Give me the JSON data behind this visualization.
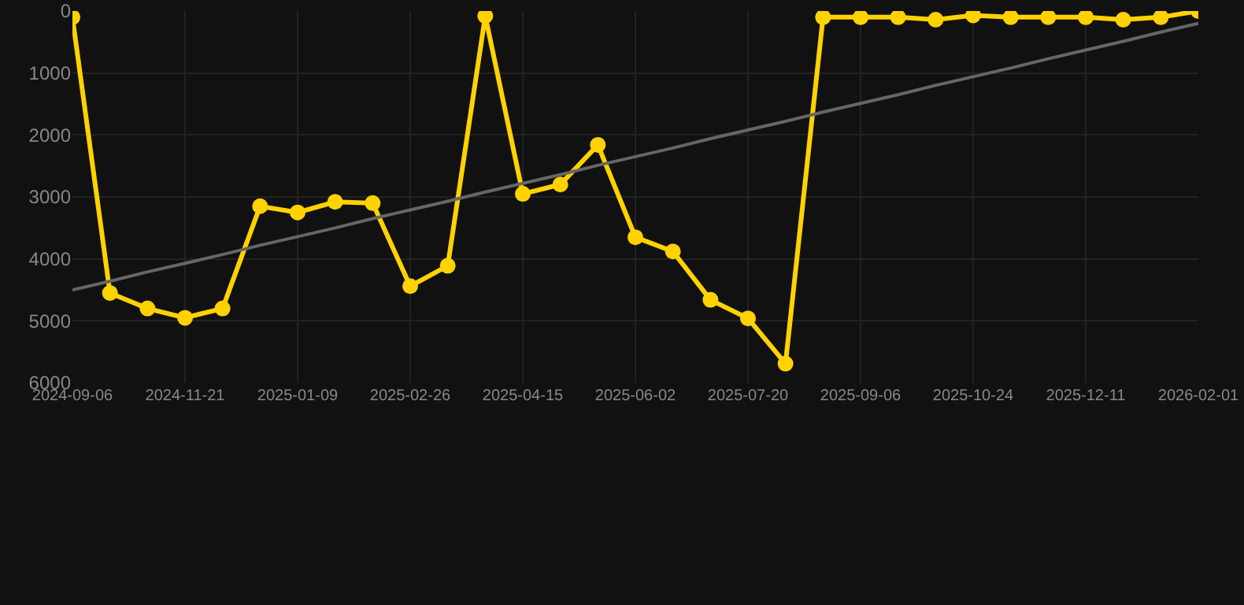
{
  "chart_data": {
    "type": "line",
    "categories": [
      "2024-09-06",
      null,
      null,
      "2024-11-21",
      null,
      null,
      "2025-01-09",
      null,
      null,
      "2025-02-26",
      null,
      null,
      "2025-04-15",
      null,
      null,
      "2025-06-02",
      null,
      null,
      "2025-07-20",
      null,
      null,
      "2025-09-06",
      null,
      null,
      "2025-10-24",
      null,
      null,
      "2025-12-11",
      null,
      null,
      "2026-02-01"
    ],
    "series": [
      {
        "color": "#ffd200",
        "marker": "circle",
        "values": [
          100,
          4550,
          4800,
          4950,
          4800,
          3150,
          3250,
          3080,
          3100,
          4440,
          4110,
          80,
          2950,
          2800,
          2160,
          3650,
          3880,
          4660,
          4960,
          5690,
          100,
          100,
          100,
          140,
          70,
          100,
          100,
          100,
          140,
          100,
          0
        ]
      },
      {
        "type": "line",
        "color": "#666666",
        "marker": "none",
        "values": [
          4500,
          4360,
          4210,
          4070,
          3930,
          3780,
          3640,
          3500,
          3350,
          3210,
          3070,
          2920,
          2780,
          2640,
          2490,
          2350,
          2210,
          2060,
          1920,
          1780,
          1630,
          1490,
          1350,
          1200,
          1060,
          920,
          770,
          630,
          490,
          340,
          200
        ]
      }
    ],
    "ylim": [
      6000,
      0
    ],
    "yticks": [
      0,
      1000,
      2000,
      3000,
      4000,
      5000,
      6000
    ],
    "grid": true
  }
}
